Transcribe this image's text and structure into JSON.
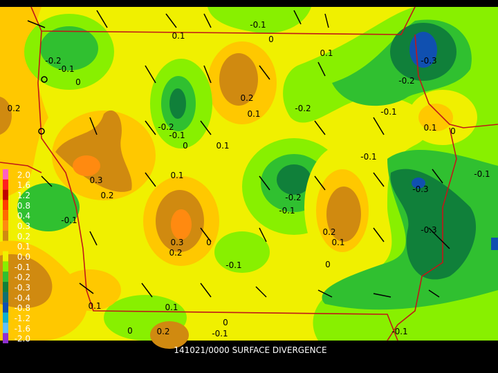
{
  "title": "141021/0000 SURFACE DIVERGENCE",
  "colorbar": [
    {
      "label": "2.0",
      "color": "#ff60c0"
    },
    {
      "label": "1.6",
      "color": "#ff2020"
    },
    {
      "label": "1.2",
      "color": "#c00000"
    },
    {
      "label": "0.8",
      "color": "#ff3c00"
    },
    {
      "label": "0.4",
      "color": "#ff6a00"
    },
    {
      "label": "0.3",
      "color": "#ff8a10"
    },
    {
      "label": "0.2",
      "color": "#d08a10"
    },
    {
      "label": "0.1",
      "color": "#ffc800"
    },
    {
      "label": "0.0",
      "color": "#f0f000"
    },
    {
      "label": "-0.1",
      "color": "#88f000"
    },
    {
      "label": "-0.2",
      "color": "#30c030"
    },
    {
      "label": "-0.3",
      "color": "#10803a"
    },
    {
      "label": "-0.4",
      "color": "#107070"
    },
    {
      "label": "-0.8",
      "color": "#1050b0"
    },
    {
      "label": "-1.2",
      "color": "#10b0d0"
    },
    {
      "label": "-1.6",
      "color": "#60c0ff"
    },
    {
      "label": "-2.0",
      "color": "#9030d0"
    }
  ],
  "contour_labels": [
    "0.1",
    "-0.1",
    "0",
    "0.1",
    "-0.2",
    "-0.1",
    "0",
    "-0.3",
    "-0.2",
    "0.2",
    "0.1",
    "-0.2",
    "-0.1",
    "0.2",
    "-0.2",
    "-0.1",
    "0",
    "0.1",
    "0.1",
    "0",
    "-0.1",
    "0.1",
    "0.3",
    "0.2",
    "-0.3",
    "-0.1",
    "-0.2",
    "-0.1",
    "-0.1",
    "0.2",
    "0.1",
    "-0.3",
    "0.3",
    "0.2",
    "0",
    "-0.1",
    "0",
    "0.1",
    "0.1",
    "0",
    "0",
    "0.2",
    "-0.1",
    "-0.1"
  ]
}
